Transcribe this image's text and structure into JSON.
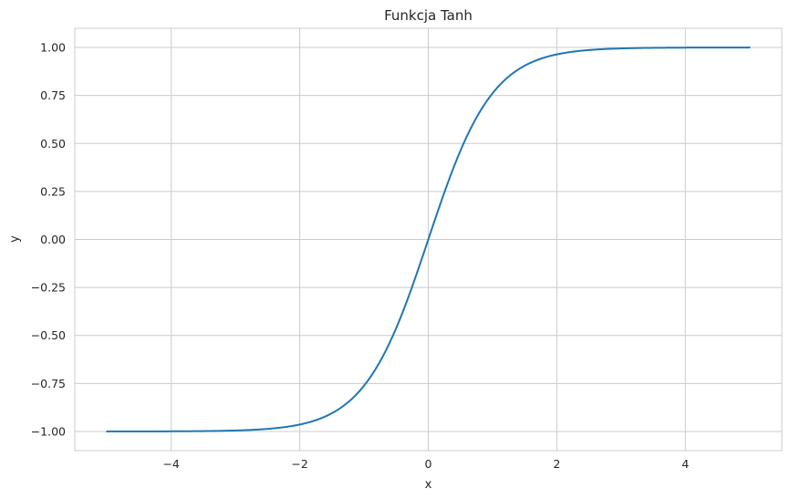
{
  "chart_data": {
    "type": "line",
    "title": "Funkcja Tanh",
    "xlabel": "x",
    "ylabel": "y",
    "xlim": [
      -5.5,
      5.5
    ],
    "ylim": [
      -1.1,
      1.1
    ],
    "grid": true,
    "x_ticks": [
      -4,
      -2,
      0,
      2,
      4
    ],
    "x_tick_labels": [
      "−4",
      "−2",
      "0",
      "2",
      "4"
    ],
    "y_ticks": [
      -1.0,
      -0.75,
      -0.5,
      -0.25,
      0.0,
      0.25,
      0.5,
      0.75,
      1.0
    ],
    "y_tick_labels": [
      "−1.00",
      "−0.75",
      "−0.50",
      "−0.25",
      "0.00",
      "0.25",
      "0.50",
      "0.75",
      "1.00"
    ],
    "series": [
      {
        "function": "tanh",
        "color": "#1f77b4",
        "x": [
          -5.0,
          -4.5,
          -4.0,
          -3.5,
          -3.0,
          -2.5,
          -2.0,
          -1.75,
          -1.5,
          -1.25,
          -1.0,
          -0.75,
          -0.5,
          -0.25,
          0.0,
          0.25,
          0.5,
          0.75,
          1.0,
          1.25,
          1.5,
          1.75,
          2.0,
          2.5,
          3.0,
          3.5,
          4.0,
          4.5,
          5.0
        ],
        "y": [
          -0.9999,
          -0.9998,
          -0.9993,
          -0.9982,
          -0.9951,
          -0.9866,
          -0.964,
          -0.9414,
          -0.9051,
          -0.8483,
          -0.7616,
          -0.6351,
          -0.4621,
          -0.2449,
          0.0,
          0.2449,
          0.4621,
          0.6351,
          0.7616,
          0.8483,
          0.9051,
          0.9414,
          0.964,
          0.9866,
          0.9951,
          0.9982,
          0.9993,
          0.9998,
          0.9999
        ]
      }
    ]
  }
}
